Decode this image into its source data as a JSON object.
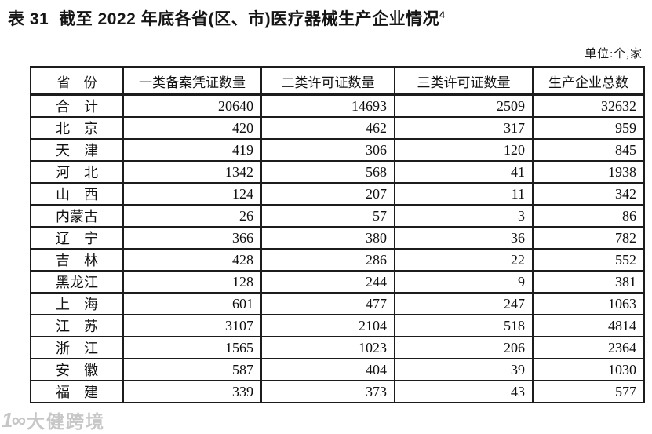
{
  "page": {
    "title_label": "表 31",
    "title_text": "截至 2022 年底各省(区、市)医疗器械生产企业情况",
    "footnote_ref": "4",
    "unit_note": "单位:个,家"
  },
  "table": {
    "columns": [
      "省　份",
      "一类备案凭证数量",
      "二类许可证数量",
      "三类许可证数量",
      "生产企业总数"
    ],
    "rows": [
      {
        "province": "合　计",
        "values": [
          "20640",
          "14693",
          "2509",
          "32632"
        ]
      },
      {
        "province": "北　京",
        "values": [
          "420",
          "462",
          "317",
          "959"
        ]
      },
      {
        "province": "天　津",
        "values": [
          "419",
          "306",
          "120",
          "845"
        ]
      },
      {
        "province": "河　北",
        "values": [
          "1342",
          "568",
          "41",
          "1938"
        ]
      },
      {
        "province": "山　西",
        "values": [
          "124",
          "207",
          "11",
          "342"
        ]
      },
      {
        "province": "内蒙古",
        "values": [
          "26",
          "57",
          "3",
          "86"
        ]
      },
      {
        "province": "辽　宁",
        "values": [
          "366",
          "380",
          "36",
          "782"
        ]
      },
      {
        "province": "吉　林",
        "values": [
          "428",
          "286",
          "22",
          "552"
        ]
      },
      {
        "province": "黑龙江",
        "values": [
          "128",
          "244",
          "9",
          "381"
        ]
      },
      {
        "province": "上　海",
        "values": [
          "601",
          "477",
          "247",
          "1063"
        ]
      },
      {
        "province": "江　苏",
        "values": [
          "3107",
          "2104",
          "518",
          "4814"
        ]
      },
      {
        "province": "浙　江",
        "values": [
          "1565",
          "1023",
          "206",
          "2364"
        ]
      },
      {
        "province": "安　徽",
        "values": [
          "587",
          "404",
          "39",
          "1030"
        ]
      },
      {
        "province": "福　建",
        "values": [
          "339",
          "373",
          "43",
          "577"
        ]
      }
    ]
  },
  "watermark": {
    "logo_glyph": "1∞",
    "text": "大健跨境"
  },
  "colors": {
    "text": "#121212",
    "border": "#1c1c1c",
    "watermark_gray": "#9a9a9a"
  }
}
